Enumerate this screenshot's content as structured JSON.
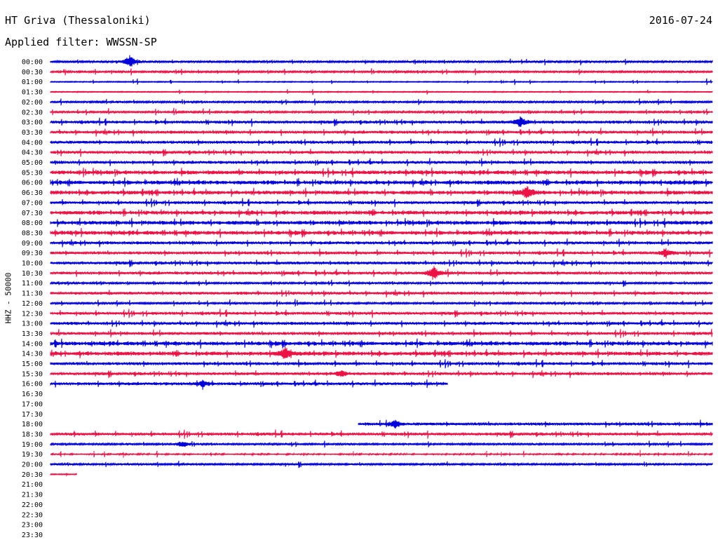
{
  "header": {
    "station": "HT Griva (Thessaloniki)",
    "date": "2016-07-24",
    "filter": "Applied filter: WWSSN-SP"
  },
  "chart_data": {
    "type": "line",
    "title": "HT Griva (Thessaloniki)",
    "subtitle": "Applied filter: WWSSN-SP",
    "ylabel": "HHZ - 50000",
    "colors": [
      "#0000dd",
      "#ee1144"
    ],
    "row_labels": [
      "00:00",
      "00:30",
      "01:00",
      "01:30",
      "02:00",
      "02:30",
      "03:00",
      "03:30",
      "04:00",
      "04:30",
      "05:00",
      "05:30",
      "06:00",
      "06:30",
      "07:00",
      "07:30",
      "08:00",
      "08:30",
      "09:00",
      "09:30",
      "10:00",
      "10:30",
      "11:00",
      "11:30",
      "12:00",
      "12:30",
      "13:00",
      "13:30",
      "14:00",
      "14:30",
      "15:00",
      "15:30",
      "16:00",
      "16:30",
      "17:00",
      "17:30",
      "18:00",
      "18:30",
      "19:00",
      "19:30",
      "20:00",
      "20:30",
      "21:00",
      "21:30",
      "22:00",
      "22:30",
      "23:00",
      "23:30"
    ],
    "row_spans": [
      [
        0,
        1
      ],
      [
        0,
        1
      ],
      [
        0,
        1
      ],
      [
        0,
        1
      ],
      [
        0,
        1
      ],
      [
        0,
        1
      ],
      [
        0,
        1
      ],
      [
        0,
        1
      ],
      [
        0,
        1
      ],
      [
        0,
        1
      ],
      [
        0,
        1
      ],
      [
        0,
        1
      ],
      [
        0,
        1
      ],
      [
        0,
        1
      ],
      [
        0,
        1
      ],
      [
        0,
        1
      ],
      [
        0,
        1
      ],
      [
        0,
        1
      ],
      [
        0,
        1
      ],
      [
        0,
        1
      ],
      [
        0,
        1
      ],
      [
        0,
        1
      ],
      [
        0,
        1
      ],
      [
        0,
        1
      ],
      [
        0,
        1
      ],
      [
        0,
        1
      ],
      [
        0,
        1
      ],
      [
        0,
        1
      ],
      [
        0,
        1
      ],
      [
        0,
        1
      ],
      [
        0,
        1
      ],
      [
        0,
        1
      ],
      [
        0,
        0.6
      ],
      [],
      [],
      [],
      [
        0.465,
        1
      ],
      [
        0,
        1
      ],
      [
        0,
        1
      ],
      [
        0,
        1
      ],
      [
        0,
        1
      ],
      [
        0,
        0.04
      ],
      [],
      [],
      [],
      [],
      [],
      []
    ],
    "row_activity": [
      1,
      1,
      0,
      0,
      1,
      1,
      2,
      2,
      2,
      2,
      2,
      3,
      3,
      3,
      2,
      3,
      3,
      3,
      2,
      2,
      2,
      2,
      1,
      2,
      1,
      2,
      2,
      2,
      3,
      3,
      2,
      2,
      2,
      0,
      0,
      0,
      2,
      2,
      1,
      1,
      1,
      0,
      0,
      0,
      0,
      0,
      0,
      0
    ],
    "events": [
      {
        "row": "00:00",
        "x": 0.12,
        "amp": 1.0
      },
      {
        "row": "03:00",
        "x": 0.71,
        "amp": 0.8
      },
      {
        "row": "06:30",
        "x": 0.72,
        "amp": 0.9
      },
      {
        "row": "09:30",
        "x": 0.93,
        "amp": 0.6
      },
      {
        "row": "10:30",
        "x": 0.58,
        "amp": 1.0
      },
      {
        "row": "14:30",
        "x": 0.355,
        "amp": 0.9
      },
      {
        "row": "15:30",
        "x": 0.44,
        "amp": 0.5
      },
      {
        "row": "16:00",
        "x": 0.23,
        "amp": 0.5
      },
      {
        "row": "18:00",
        "x": 0.52,
        "amp": 0.6
      },
      {
        "row": "19:00",
        "x": 0.2,
        "amp": 0.5
      }
    ]
  }
}
